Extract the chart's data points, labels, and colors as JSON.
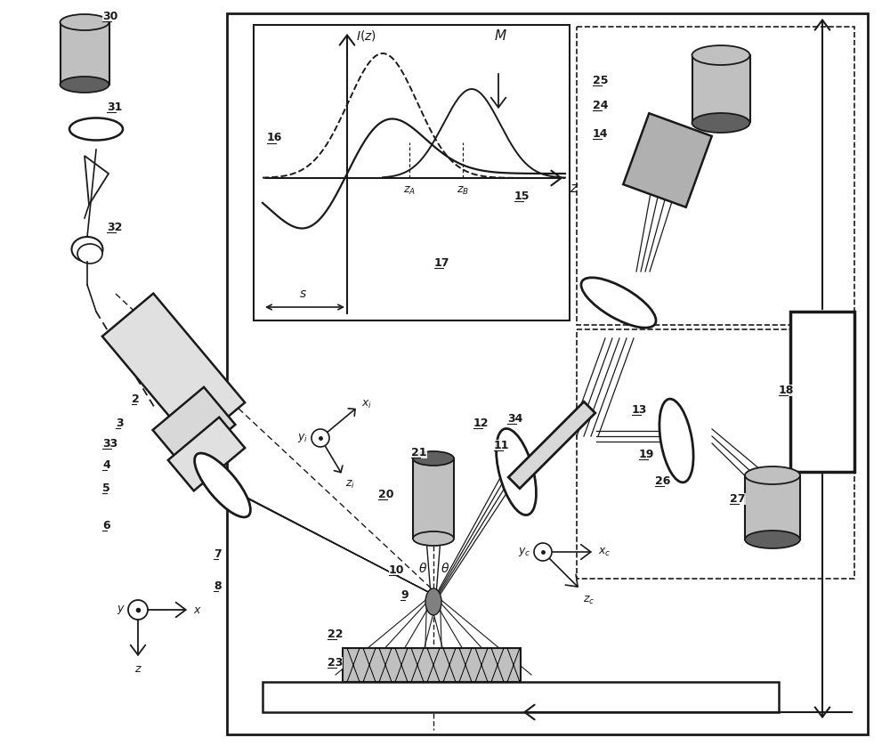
{
  "bg_color": "#ffffff",
  "lc": "#1a1a1a",
  "gc": "#808080",
  "lgc": "#c0c0c0",
  "dark_gc": "#606060"
}
